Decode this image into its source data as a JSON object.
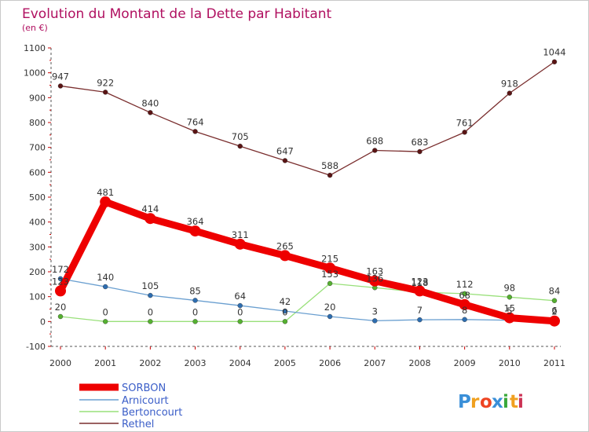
{
  "chart_data": {
    "type": "line",
    "title": "Evolution du Montant de la Dette par Habitant",
    "subtitle": "(en €)",
    "categories": [
      "2000",
      "2001",
      "2002",
      "2003",
      "2004",
      "2005",
      "2006",
      "2007",
      "2008",
      "2009",
      "2010",
      "2011"
    ],
    "ylim": [
      -100,
      1100
    ],
    "yticks": [
      -100,
      0,
      100,
      200,
      300,
      400,
      500,
      600,
      700,
      800,
      900,
      1000,
      1100
    ],
    "grid": false,
    "legend_position": "bottom-left",
    "series": [
      {
        "name": "SORBON",
        "color": "#ee0000",
        "values": [
          123,
          481,
          414,
          364,
          311,
          265,
          215,
          163,
          123,
          68,
          15,
          2
        ]
      },
      {
        "name": "Arnicourt",
        "color": "#6a9fd0",
        "values": [
          172,
          140,
          105,
          85,
          64,
          42,
          20,
          3,
          7,
          8,
          5,
          6
        ]
      },
      {
        "name": "Bertoncourt",
        "color": "#99e07a",
        "values": [
          20,
          0,
          0,
          0,
          0,
          0,
          153,
          136,
          118,
          112,
          98,
          84
        ]
      },
      {
        "name": "Rethel",
        "color": "#7a2e2e",
        "values": [
          947,
          922,
          840,
          764,
          705,
          647,
          588,
          688,
          683,
          761,
          918,
          1044
        ]
      }
    ]
  },
  "logo": {
    "text": "Proxiti",
    "colors": [
      "#3a8fd8",
      "#f0a020",
      "#ee4422",
      "#3a8fd8",
      "#3aa83a",
      "#f0a020",
      "#cc3355"
    ]
  }
}
